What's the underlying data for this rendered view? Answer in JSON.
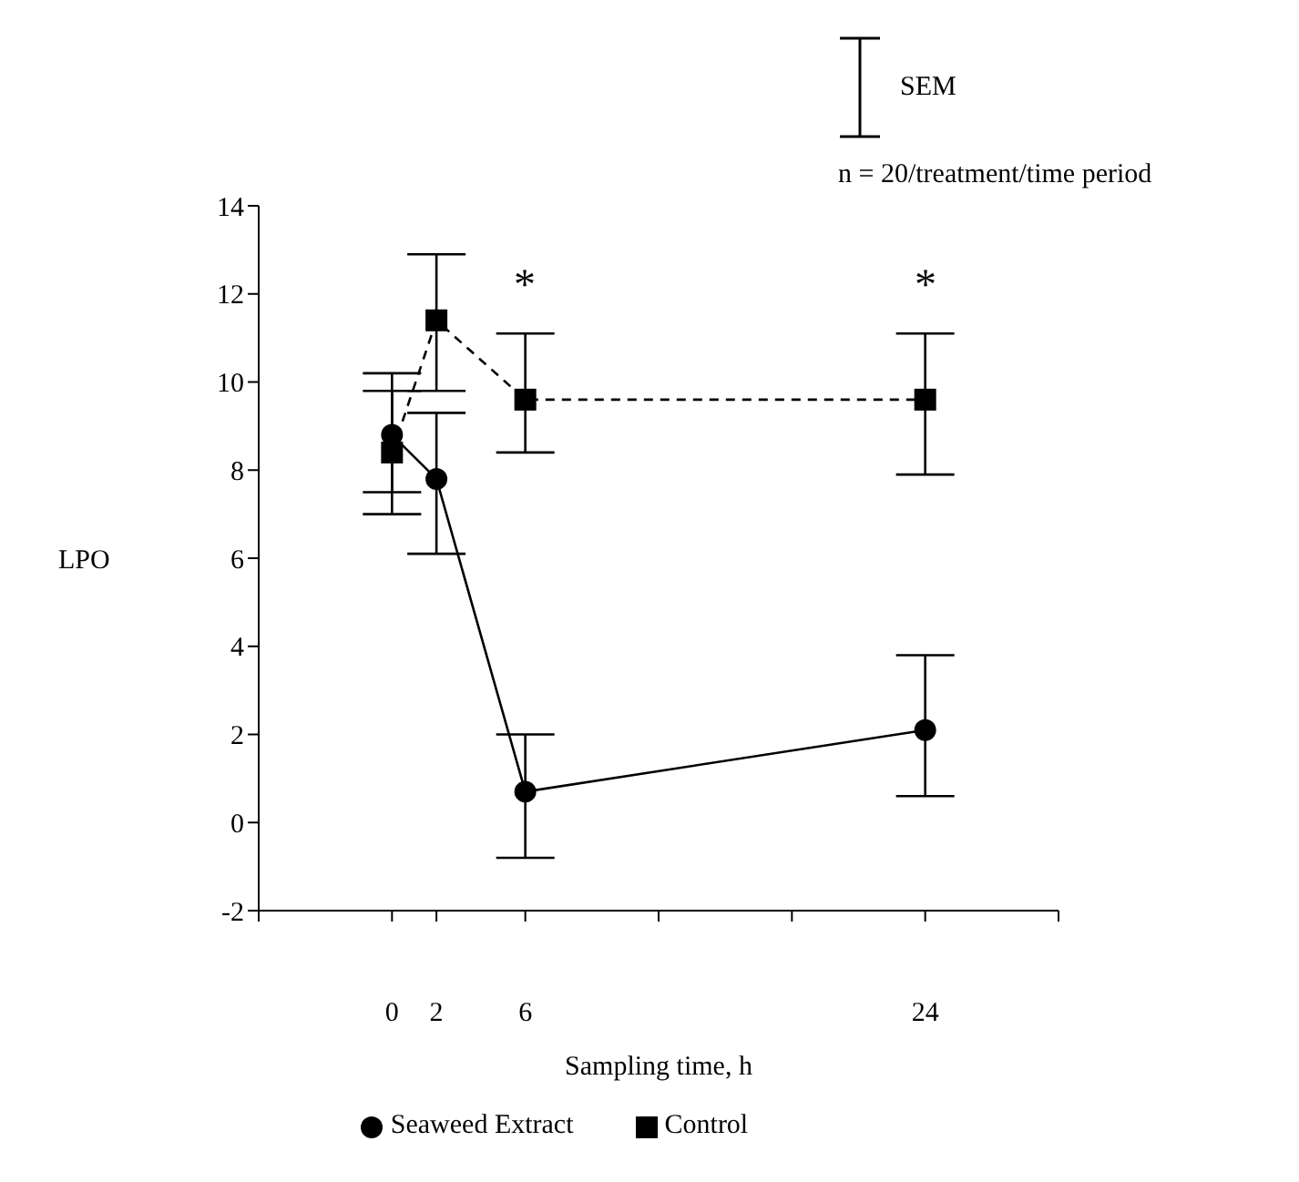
{
  "chart_data": {
    "type": "line",
    "xlabel": "Sampling time, h",
    "ylabel": "LPO",
    "x": [
      0,
      2,
      6,
      24
    ],
    "xlim": [
      -6,
      30
    ],
    "xticks": [
      {
        "value": -6,
        "label": null
      },
      0,
      2,
      6,
      {
        "value": 12,
        "label": null
      },
      {
        "value": 18,
        "label": null
      },
      24,
      {
        "value": 30,
        "label": null
      }
    ],
    "ylim": [
      -2,
      14
    ],
    "yticks": [
      -2,
      0,
      2,
      4,
      6,
      8,
      10,
      12,
      14
    ],
    "series": [
      {
        "name": "Seaweed Extract",
        "color": "#000000",
        "values": [
          8.8,
          7.8,
          0.7,
          2.1
        ],
        "errors": [
          [
            7.0,
            10.2
          ],
          [
            6.1,
            9.3
          ],
          [
            -0.8,
            2.0
          ],
          [
            0.6,
            3.8
          ]
        ],
        "marker": "circle",
        "line_style": "solid"
      },
      {
        "name": "Control",
        "color": "#000000",
        "values": [
          8.4,
          11.4,
          9.6,
          9.6
        ],
        "errors": [
          [
            7.5,
            9.8
          ],
          [
            9.8,
            12.9
          ],
          [
            8.4,
            11.1
          ],
          [
            7.9,
            11.1
          ]
        ],
        "marker": "square",
        "line_style": "dashed"
      }
    ],
    "annotations": [
      "SEM",
      "n = 20/treatment/time period",
      "*",
      "*"
    ],
    "legend": "bottom",
    "grid": false
  }
}
